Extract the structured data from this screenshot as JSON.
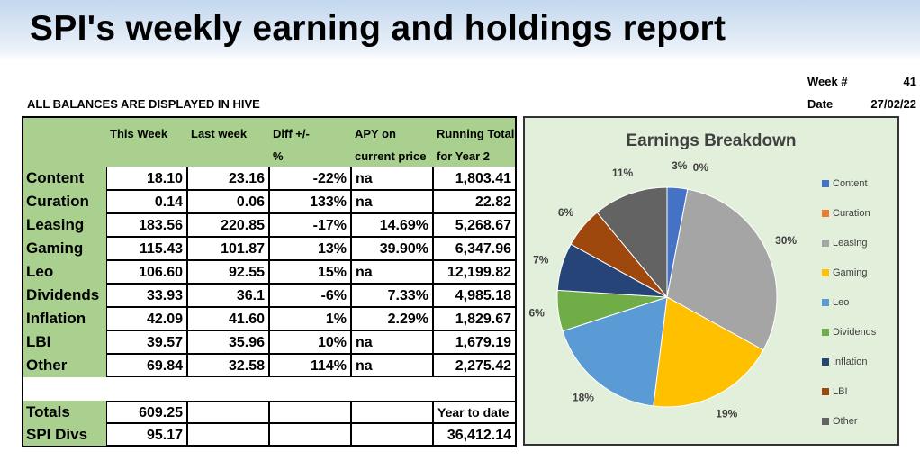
{
  "header": {
    "title": "SPI's weekly earning and holdings report",
    "week_label": "Week #",
    "week": "41",
    "date_label": "Date",
    "date": "27/02/22",
    "note": "ALL BALANCES ARE DISPLAYED IN HIVE"
  },
  "table": {
    "headers": [
      [
        "This Week"
      ],
      [
        "Last week"
      ],
      [
        "Diff +/-",
        "%"
      ],
      [
        "APY on",
        "current price"
      ],
      [
        "Running Total",
        "for Year 2"
      ]
    ],
    "rows": [
      [
        "Content",
        "18.10",
        "23.16",
        "-22%",
        "na",
        "1,803.41"
      ],
      [
        "Curation",
        "0.14",
        "0.06",
        "133%",
        "na",
        "22.82"
      ],
      [
        "Leasing",
        "183.56",
        "220.85",
        "-17%",
        "14.69%",
        "5,268.67"
      ],
      [
        "Gaming",
        "115.43",
        "101.87",
        "13%",
        "39.90%",
        "6,347.96"
      ],
      [
        "Leo",
        "106.60",
        "92.55",
        "15%",
        "na",
        "12,199.82"
      ],
      [
        "Dividends",
        "33.93",
        "36.1",
        "-6%",
        "7.33%",
        "4,985.18"
      ],
      [
        "Inflation",
        "42.09",
        "41.60",
        "1%",
        "2.29%",
        "1,829.67"
      ],
      [
        "LBI",
        "39.57",
        "35.96",
        "10%",
        "na",
        "1,679.19"
      ],
      [
        "Other",
        "69.84",
        "32.58",
        "114%",
        "na",
        "2,275.42"
      ]
    ],
    "totals": [
      {
        "label": "Totals",
        "this_week": "609.25",
        "note": "Year to date"
      },
      {
        "label": "SPI Divs",
        "this_week": "95.17",
        "note": "36,412.14"
      }
    ]
  },
  "chart_data": {
    "type": "pie",
    "title": "Earnings Breakdown",
    "categories": [
      "Content",
      "Curation",
      "Leasing",
      "Gaming",
      "Leo",
      "Dividends",
      "Inflation",
      "LBI",
      "Other"
    ],
    "values": [
      3,
      0,
      30,
      19,
      18,
      6,
      7,
      6,
      11
    ],
    "value_labels": [
      "3%",
      "0%",
      "30%",
      "19%",
      "18%",
      "6%",
      "7%",
      "6%",
      "11%"
    ],
    "colors": [
      "#4472c4",
      "#ed7d31",
      "#a5a5a5",
      "#ffc000",
      "#5b9bd5",
      "#70ad47",
      "#264478",
      "#9e480e",
      "#636363"
    ],
    "legend": "right"
  }
}
